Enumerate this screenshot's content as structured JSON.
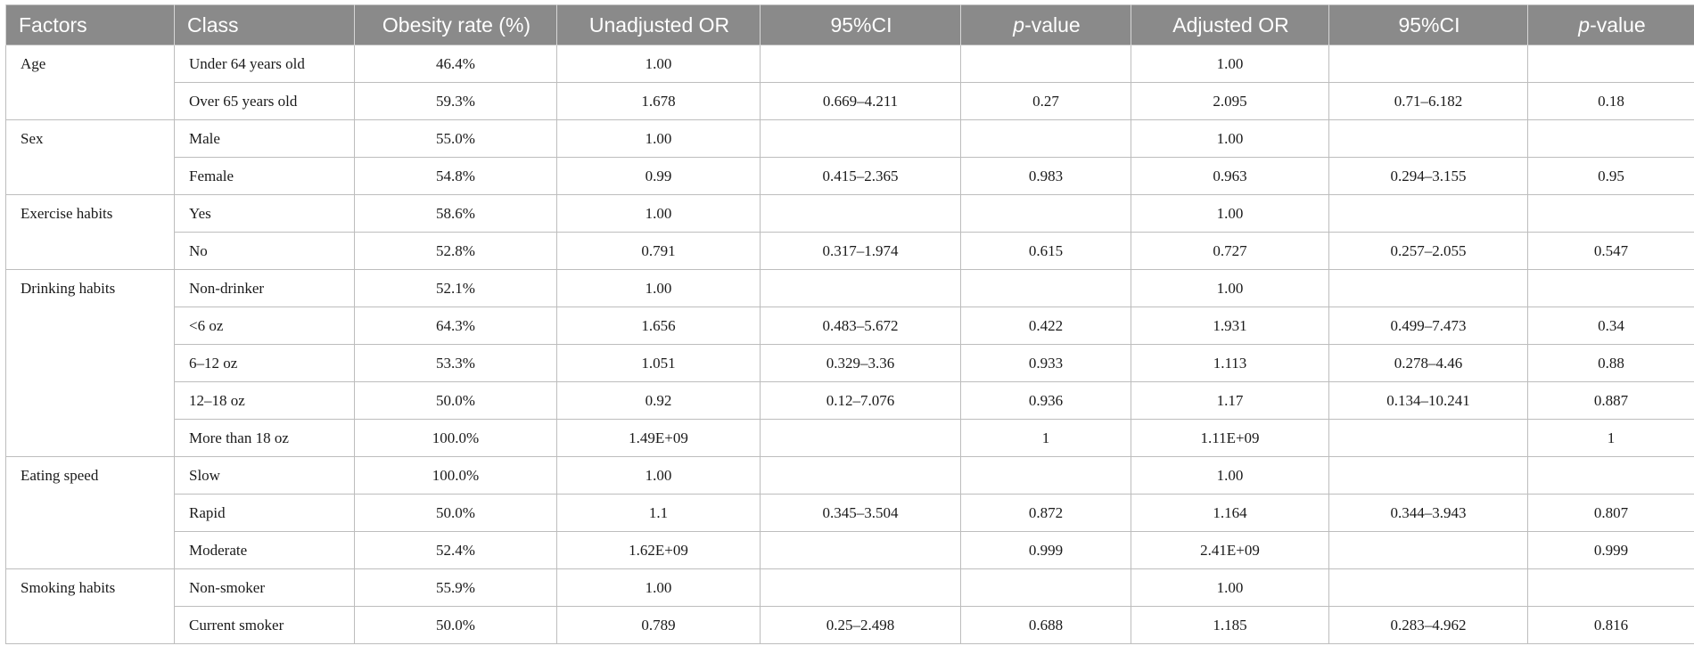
{
  "table": {
    "headers": [
      {
        "text": "Factors"
      },
      {
        "text": "Class"
      },
      {
        "text": "Obesity rate (%)"
      },
      {
        "text": "Unadjusted OR"
      },
      {
        "text": "95%CI"
      },
      {
        "text": "p",
        "suffix": "-value"
      },
      {
        "text": "Adjusted OR"
      },
      {
        "text": "95%CI"
      },
      {
        "text": "p",
        "suffix": "-value"
      }
    ],
    "groups": [
      {
        "factor": "Age",
        "rows": [
          {
            "class": "Under 64 years old",
            "rate": "46.4%",
            "uor": "1.00",
            "uci": "",
            "up": "",
            "aor": "1.00",
            "aci": "",
            "ap": ""
          },
          {
            "class": "Over 65 years old",
            "rate": "59.3%",
            "uor": "1.678",
            "uci": "0.669–4.211",
            "up": "0.27",
            "aor": "2.095",
            "aci": "0.71–6.182",
            "ap": "0.18"
          }
        ]
      },
      {
        "factor": "Sex",
        "rows": [
          {
            "class": "Male",
            "rate": "55.0%",
            "uor": "1.00",
            "uci": "",
            "up": "",
            "aor": "1.00",
            "aci": "",
            "ap": ""
          },
          {
            "class": "Female",
            "rate": "54.8%",
            "uor": "0.99",
            "uci": "0.415–2.365",
            "up": "0.983",
            "aor": "0.963",
            "aci": "0.294–3.155",
            "ap": "0.95"
          }
        ]
      },
      {
        "factor": "Exercise habits",
        "rows": [
          {
            "class": "Yes",
            "rate": "58.6%",
            "uor": "1.00",
            "uci": "",
            "up": "",
            "aor": "1.00",
            "aci": "",
            "ap": ""
          },
          {
            "class": "No",
            "rate": "52.8%",
            "uor": "0.791",
            "uci": "0.317–1.974",
            "up": "0.615",
            "aor": "0.727",
            "aci": "0.257–2.055",
            "ap": "0.547"
          }
        ]
      },
      {
        "factor": "Drinking habits",
        "rows": [
          {
            "class": "Non-drinker",
            "rate": "52.1%",
            "uor": "1.00",
            "uci": "",
            "up": "",
            "aor": "1.00",
            "aci": "",
            "ap": ""
          },
          {
            "class": "<6 oz",
            "rate": "64.3%",
            "uor": "1.656",
            "uci": "0.483–5.672",
            "up": "0.422",
            "aor": "1.931",
            "aci": "0.499–7.473",
            "ap": "0.34"
          },
          {
            "class": "6–12 oz",
            "rate": "53.3%",
            "uor": "1.051",
            "uci": "0.329–3.36",
            "up": "0.933",
            "aor": "1.113",
            "aci": "0.278–4.46",
            "ap": "0.88"
          },
          {
            "class": "12–18 oz",
            "rate": "50.0%",
            "uor": "0.92",
            "uci": "0.12–7.076",
            "up": "0.936",
            "aor": "1.17",
            "aci": "0.134–10.241",
            "ap": "0.887"
          },
          {
            "class": "More than 18 oz",
            "rate": "100.0%",
            "uor": "1.49E+09",
            "uci": "",
            "up": "1",
            "aor": "1.11E+09",
            "aci": "",
            "ap": "1"
          }
        ]
      },
      {
        "factor": "Eating speed",
        "rows": [
          {
            "class": "Slow",
            "rate": "100.0%",
            "uor": "1.00",
            "uci": "",
            "up": "",
            "aor": "1.00",
            "aci": "",
            "ap": ""
          },
          {
            "class": "Rapid",
            "rate": "50.0%",
            "uor": "1.1",
            "uci": "0.345–3.504",
            "up": "0.872",
            "aor": "1.164",
            "aci": "0.344–3.943",
            "ap": "0.807"
          },
          {
            "class": "Moderate",
            "rate": "52.4%",
            "uor": "1.62E+09",
            "uci": "",
            "up": "0.999",
            "aor": "2.41E+09",
            "aci": "",
            "ap": "0.999"
          }
        ]
      },
      {
        "factor": "Smoking habits",
        "rows": [
          {
            "class": "Non-smoker",
            "rate": "55.9%",
            "uor": "1.00",
            "uci": "",
            "up": "",
            "aor": "1.00",
            "aci": "",
            "ap": ""
          },
          {
            "class": "Current smoker",
            "rate": "50.0%",
            "uor": "0.789",
            "uci": "0.25–2.498",
            "up": "0.688",
            "aor": "1.185",
            "aci": "0.283–4.962",
            "ap": "0.816"
          }
        ]
      }
    ]
  }
}
